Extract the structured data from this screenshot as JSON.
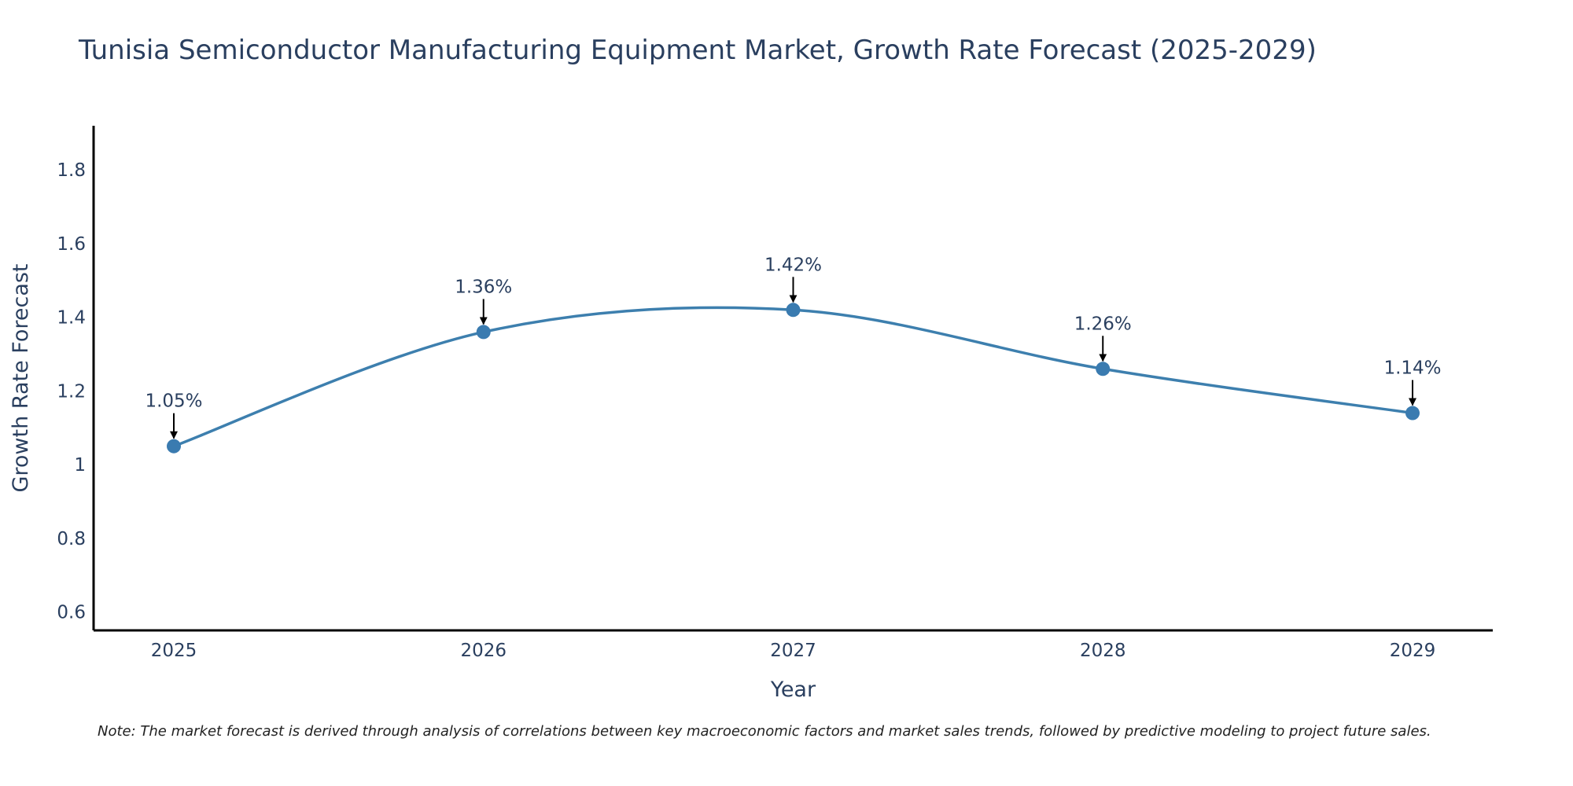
{
  "colors": {
    "line": "#3d7fae",
    "marker": "#3a7bb0",
    "text": "#2a3f5f",
    "axis": "#000000",
    "arrow": "#000000"
  },
  "chart_data": {
    "type": "line",
    "title": "Tunisia Semiconductor Manufacturing Equipment Market, Growth Rate Forecast (2025-2029)",
    "xlabel": "Year",
    "ylabel": "Growth Rate Forecast",
    "categories": [
      "2025",
      "2026",
      "2027",
      "2028",
      "2029"
    ],
    "values": [
      1.05,
      1.36,
      1.42,
      1.26,
      1.14
    ],
    "data_labels": [
      "1.05%",
      "1.36%",
      "1.42%",
      "1.26%",
      "1.14%"
    ],
    "ylim": [
      0.55,
      1.92
    ],
    "yticks": [
      0.6,
      0.8,
      1,
      1.2,
      1.4,
      1.6,
      1.8
    ],
    "ytick_labels": [
      "0.6",
      "0.8",
      "1",
      "1.2",
      "1.4",
      "1.6",
      "1.8"
    ],
    "grid": false,
    "line_shape": "spline"
  },
  "note": "Note: The market forecast is derived through analysis of correlations between key macroeconomic factors and market sales trends, followed by predictive modeling to project future sales."
}
